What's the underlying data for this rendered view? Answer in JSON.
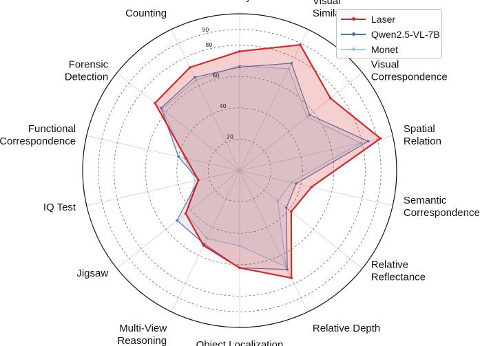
{
  "chart_data": {
    "type": "radar",
    "categories": [
      "Art Style",
      "Visual Similarity",
      "Visual Correspondence",
      "Spatial Relation",
      "Semantic Correspondence",
      "Relative Reflectance",
      "Relative Depth",
      "Object Localization",
      "Multi-View Reasoning",
      "Jigsaw",
      "IQ Test",
      "Functional Correspondence",
      "Forensic Detection",
      "Counting"
    ],
    "category_lines": [
      [
        "Art Style"
      ],
      [
        "Visual",
        "Similarity"
      ],
      [
        "Visual",
        "Correspondence"
      ],
      [
        "Spatial",
        "Relation"
      ],
      [
        "Semantic",
        "Correspondence"
      ],
      [
        "Relative",
        "Reflectance"
      ],
      [
        "Relative Depth"
      ],
      [
        "Object Localization"
      ],
      [
        "Multi-View",
        "Reasoning"
      ],
      [
        "Jigsaw"
      ],
      [
        "IQ Test"
      ],
      [
        "Functional",
        "Correspondence"
      ],
      [
        "Forensic",
        "Detection"
      ],
      [
        "Counting"
      ]
    ],
    "series": [
      {
        "name": "Laser",
        "color": "#d62728",
        "values": [
          76,
          89,
          74,
          92,
          47,
          42,
          76,
          62,
          53,
          44,
          27,
          35,
          69,
          73
        ]
      },
      {
        "name": "Qwen2.5-VL-7B",
        "color": "#4c72b0",
        "values": [
          66,
          76,
          57,
          84,
          37,
          38,
          70,
          62,
          52,
          51,
          27,
          40,
          64,
          66
        ]
      },
      {
        "name": "Monet",
        "color": "#9ecae1",
        "values": [
          67,
          72,
          55,
          79,
          34,
          31,
          68,
          48,
          48,
          44,
          29,
          36,
          63,
          64
        ]
      }
    ],
    "r_ticks": [
      20,
      40,
      60,
      80,
      90
    ],
    "r_max": 100,
    "grid": true,
    "legend": "top-right"
  }
}
